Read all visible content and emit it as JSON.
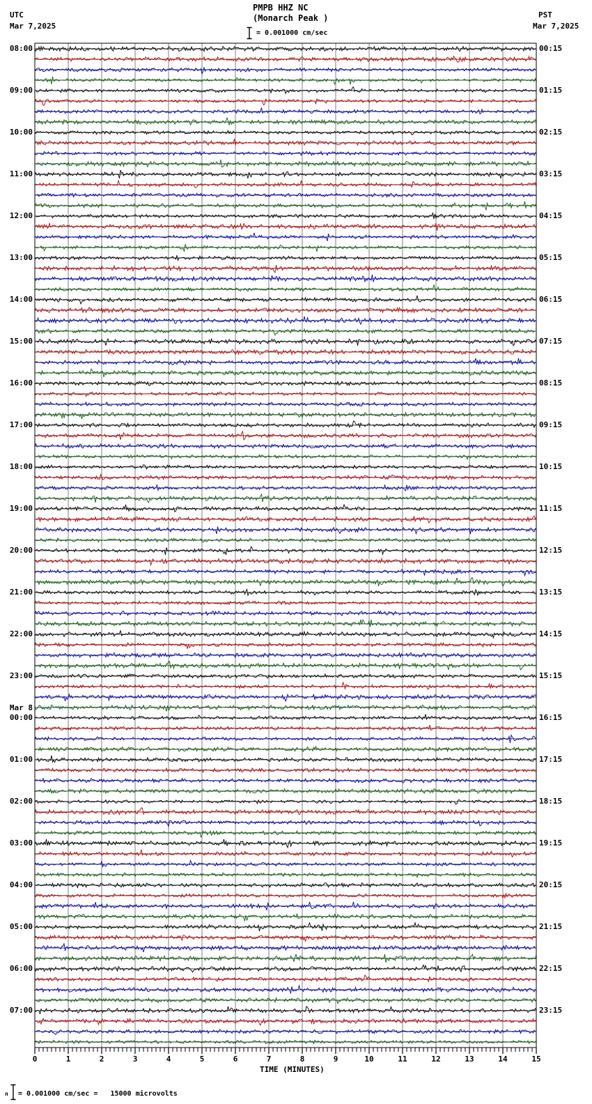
{
  "header": {
    "utc_label": "UTC",
    "utc_date": "Mar 7,2025",
    "pst_label": "PST",
    "pst_date": "Mar 7,2025",
    "station_line": "PMPB HHZ NC",
    "location_line": "(Monarch Peak )",
    "scale_text": "= 0.001000 cm/sec"
  },
  "footer": {
    "marker": "n",
    "note": "= 0.001000 cm/sec =   15000 microvolts"
  },
  "x_axis": {
    "title": "TIME (MINUTES)",
    "major_ticks": [
      "0",
      "1",
      "2",
      "3",
      "4",
      "5",
      "6",
      "7",
      "8",
      "9",
      "10",
      "11",
      "12",
      "13",
      "14",
      "15"
    ],
    "minor_divisions_per_major": 8
  },
  "left_time_labels": [
    "08:00",
    "09:00",
    "10:00",
    "11:00",
    "12:00",
    "13:00",
    "14:00",
    "15:00",
    "16:00",
    "17:00",
    "18:00",
    "19:00",
    "20:00",
    "21:00",
    "22:00",
    "23:00",
    "00:00",
    "01:00",
    "02:00",
    "03:00",
    "04:00",
    "05:00",
    "06:00",
    "07:00"
  ],
  "day_break": {
    "label": "Mar 8",
    "before_left_label_index": 16
  },
  "right_time_labels": [
    "00:15",
    "01:15",
    "02:15",
    "03:15",
    "04:15",
    "05:15",
    "06:15",
    "07:15",
    "08:15",
    "09:15",
    "10:15",
    "11:15",
    "12:15",
    "13:15",
    "14:15",
    "15:15",
    "16:15",
    "17:15",
    "18:15",
    "19:15",
    "20:15",
    "21:15",
    "22:15",
    "23:15"
  ],
  "traces": {
    "rows": 96,
    "rows_per_hour": 4,
    "minutes_per_row": 15,
    "color_cycle": [
      "#000000",
      "#cc0000",
      "#0000bb",
      "#0a640a"
    ],
    "grid_color": "#808080",
    "border_color": "#000000"
  },
  "chart_data": {
    "type": "line",
    "subtype": "helicorder-seismogram",
    "title": "PMPB HHZ NC (Monarch Peak )",
    "xlabel": "TIME (MINUTES)",
    "x_range_minutes": [
      0,
      15
    ],
    "x_ticks": [
      0,
      1,
      2,
      3,
      4,
      5,
      6,
      7,
      8,
      9,
      10,
      11,
      12,
      13,
      14,
      15
    ],
    "row_count": 96,
    "row_duration_minutes": 15,
    "rows_per_hour": 4,
    "row_color_cycle": [
      "black",
      "red",
      "blue",
      "green"
    ],
    "y_labels_utc": [
      "08:00",
      "09:00",
      "10:00",
      "11:00",
      "12:00",
      "13:00",
      "14:00",
      "15:00",
      "16:00",
      "17:00",
      "18:00",
      "19:00",
      "20:00",
      "21:00",
      "22:00",
      "23:00",
      "00:00",
      "01:00",
      "02:00",
      "03:00",
      "04:00",
      "05:00",
      "06:00",
      "07:00"
    ],
    "y_labels_pst": [
      "00:15",
      "01:15",
      "02:15",
      "03:15",
      "04:15",
      "05:15",
      "06:15",
      "07:15",
      "08:15",
      "09:15",
      "10:15",
      "11:15",
      "12:15",
      "13:15",
      "14:15",
      "15:15",
      "16:15",
      "17:15",
      "18:15",
      "19:15",
      "20:15",
      "21:15",
      "22:15",
      "23:15"
    ],
    "utc_start": "Mar 7,2025 08:00",
    "utc_day_break": "Mar 8 at 00:00",
    "amplitude_scale": "0.001000 cm/sec = 15000 microvolts",
    "content_summary": "24 hours of continuous low-amplitude ambient seismic noise in 96 15-minute rows; no large events visible",
    "legend_position": "none",
    "grid": "vertical gridlines at each minute"
  }
}
